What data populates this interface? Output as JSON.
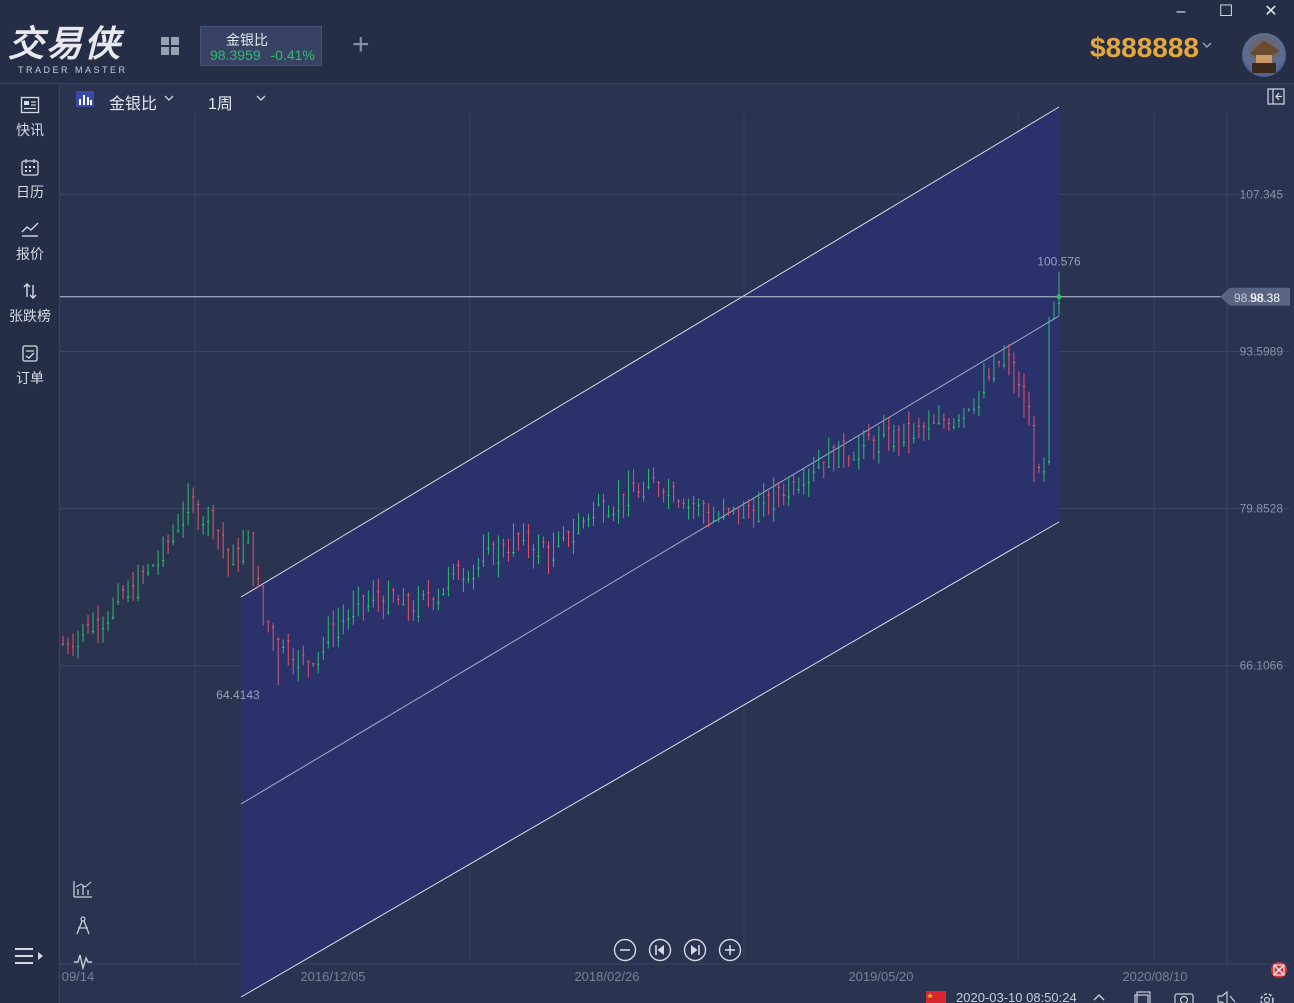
{
  "app": {
    "logo_cn": "交易侠",
    "logo_en": "TRADER MASTER",
    "balance": "$888888"
  },
  "tab": {
    "symbol": "金银比",
    "price": "98.3959",
    "change": "-0.41%",
    "add_label": "+"
  },
  "window": {
    "minimize": "–",
    "maximize": "☐",
    "close": "✕"
  },
  "sidebar": {
    "items": [
      {
        "label": "快讯",
        "icon": "newsfeed-icon"
      },
      {
        "label": "日历",
        "icon": "calendar-icon"
      },
      {
        "label": "报价",
        "icon": "quote-chart-icon"
      },
      {
        "label": "张跌榜",
        "icon": "updown-arrows-icon"
      },
      {
        "label": "订单",
        "icon": "order-icon"
      }
    ]
  },
  "chart_toolbar": {
    "symbol": "金银比",
    "period": "1周"
  },
  "chart_data": {
    "type": "candlestick",
    "y_ticks": [
      "107.345",
      "93.5989",
      "79.8528",
      "66.1066"
    ],
    "y_range": [
      40.0,
      117.0
    ],
    "x_ticks": [
      "09/14",
      "2016/12/05",
      "2018/02/26",
      "2019/05/20",
      "2020/08/10"
    ],
    "current_price_label": "98.38",
    "current_price_label_back": "98.58",
    "current_price": 98.38,
    "annotations": {
      "low": "64.4143",
      "high": "100.576"
    },
    "low_value": 64.4143,
    "high_value": 100.576,
    "up_color": "#2dbd6e",
    "down_color": "#e0566a",
    "channel_fill": "#2a3170",
    "grid": true
  },
  "status": {
    "datetime": "2020-03-10 08:50:24",
    "flag": "china-flag-icon"
  }
}
